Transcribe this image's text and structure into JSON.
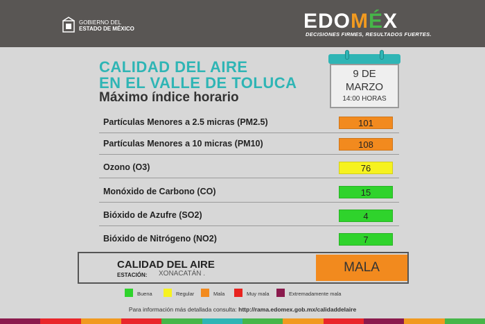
{
  "header": {
    "gov_line1": "GOBIERNO DEL",
    "gov_line2": "ESTADO DE MÉXICO",
    "brand_parts": [
      "EDO",
      "M",
      "É",
      "X"
    ],
    "brand_tagline": "DECISIONES FIRMES, RESULTADOS FUERTES.",
    "colors": {
      "bg": "#595654",
      "accent_red": "#e9262a",
      "accent_orange": "#f19a20",
      "accent_green": "#46b649"
    }
  },
  "title": {
    "line1": "CALIDAD DEL AIRE",
    "line2": "EN EL VALLE DE TOLUCA",
    "subtitle": "Máximo índice horario",
    "color": "#2fb5b5"
  },
  "calendar": {
    "day": "9 DE",
    "month": "MARZO",
    "time": "14:00 HORAS"
  },
  "pollutants": [
    {
      "label": "Partículas Menores a 2.5 micras (PM2.5)",
      "value": "101",
      "color": "#f28a1e"
    },
    {
      "label": "Partículas Menores a 10 micras (PM10)",
      "value": "108",
      "color": "#f28a1e"
    },
    {
      "label": "Ozono (O3)",
      "value": "76",
      "color": "#f6f220"
    },
    {
      "label": "Monóxido de Carbono (CO)",
      "value": "15",
      "color": "#2fd32c"
    },
    {
      "label": "Bióxido de Azufre (SO2)",
      "value": "4",
      "color": "#2fd32c"
    },
    {
      "label": "Bióxido de Nitrógeno (NO2)",
      "value": "7",
      "color": "#2fd32c"
    }
  ],
  "summary": {
    "title": "CALIDAD DEL AIRE",
    "station_label": "ESTACIÓN:",
    "station": "XONACATÁN .",
    "result": "MALA",
    "result_color": "#f28a1e"
  },
  "legend": [
    {
      "label": "Buena",
      "color": "#2fd32c"
    },
    {
      "label": "Regular",
      "color": "#f6f220"
    },
    {
      "label": "Mala",
      "color": "#f28a1e"
    },
    {
      "label": "Muy mala",
      "color": "#e8231f"
    },
    {
      "label": "Extremadamente mala",
      "color": "#8a1a4d"
    }
  ],
  "footer": {
    "info_prefix": "Para información más detallada consulta:",
    "info_url": "http://rama.edomex.gob.mx/calidaddelaire",
    "stripe_colors": [
      "#8a1a4d",
      "#e9262a",
      "#f19a20",
      "#e9262a",
      "#46b649",
      "#2fb5b5",
      "#46b649",
      "#f19a20",
      "#e9262a",
      "#8a1a4d",
      "#f19a20",
      "#46b649"
    ]
  }
}
